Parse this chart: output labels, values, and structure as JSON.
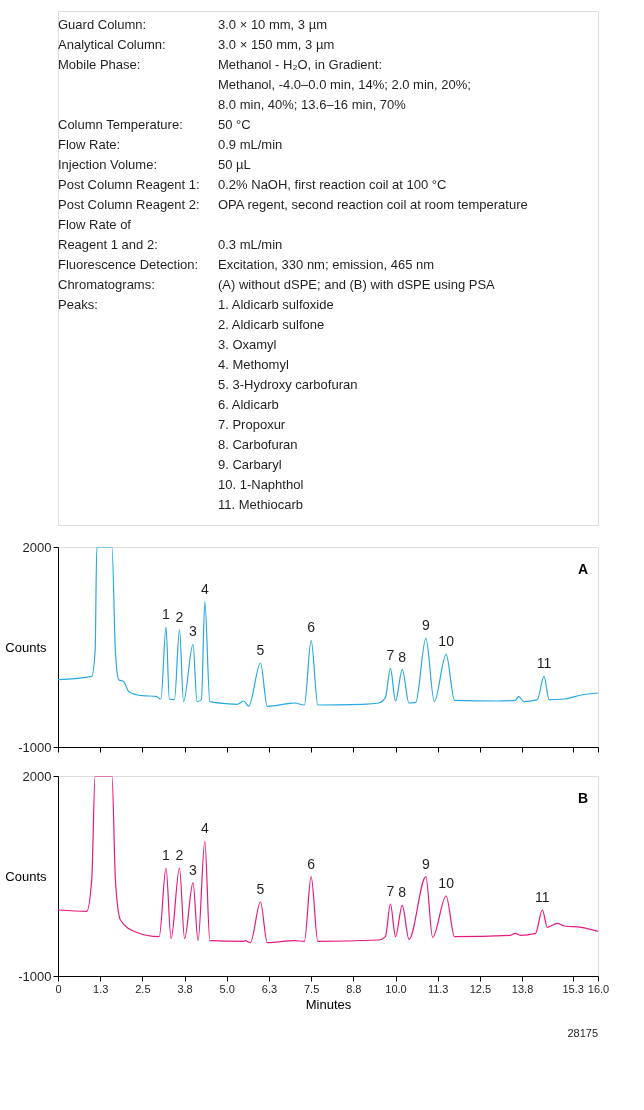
{
  "chart_data": [
    {
      "type": "other",
      "annotations": [
        "Guard Column:\t3.0 × 10 mm, 3 µm",
        "Analytical Column:\t3.0 × 150 mm, 3 µm",
        "Mobile Phase:\tMethanol - H₂O, in Gradient:",
        "\tMethanol, -4.0–0.0 min, 14%; 2.0 min, 20%;",
        "\t8.0 min, 40%; 13.6–16 min, 70%",
        "Column Temperature:\t50 °C",
        "Flow Rate:\t0.9 mL/min",
        "Injection Volume:\t50 µL",
        "Post Column Reagent 1:\t0.2% NaOH, first reaction coil at 100 °C",
        "Post Column Reagent 2:\tOPA regent, second reaction coil at room temperature",
        "Flow Rate of",
        "Reagent 1 and 2:\t0.3 mL/min",
        "Fluorescence Detection:\tExcitation, 330 nm; emission, 465 nm",
        "Chromatograms:\t(A) without dSPE; and (B) with dSPE using PSA",
        "Peaks:\t1.  Aldicarb sulfoxide",
        "\t2.  Aldicarb sulfone",
        "\t3.  Oxamyl",
        "\t4.  Methomyl",
        "\t5.  3-Hydroxy carbofuran",
        "\t6.  Aldicarb",
        "\t7.  Propoxur",
        "\t8.  Carbofuran",
        "\t9.  Carbaryl",
        "\t10.  1-Naphthol",
        "\t11.  Methiocarb"
      ]
    },
    {
      "type": "line",
      "title": "A",
      "ylabel": "Counts",
      "xlim": [
        0,
        16
      ],
      "ylim": [
        -1000,
        2000
      ],
      "yticks": [
        2000,
        -1000
      ],
      "tick_labels": "y",
      "xticks": [
        {
          "value": 0,
          "label": null
        },
        {
          "value": 1.25,
          "label": null
        },
        {
          "value": 2.5,
          "label": null
        },
        {
          "value": 3.75,
          "label": null
        },
        {
          "value": 5,
          "label": null
        },
        {
          "value": 6.25,
          "label": null
        },
        {
          "value": 7.5,
          "label": null
        },
        {
          "value": 8.75,
          "label": null
        },
        {
          "value": 10,
          "label": null
        },
        {
          "value": 11.25,
          "label": null
        },
        {
          "value": 12.5,
          "label": null
        },
        {
          "value": 13.75,
          "label": null
        },
        {
          "value": 15.25,
          "label": null
        },
        {
          "value": 16,
          "label": null
        }
      ],
      "series": [
        {
          "color": "#29a9e0",
          "x": [
            0,
            1.0,
            1.1,
            1.15,
            1.6,
            1.7,
            1.8,
            1.95,
            2.1,
            2.5,
            2.9,
            3.05,
            3.2,
            3.3,
            3.45,
            3.6,
            3.72,
            4.0,
            4.12,
            4.25,
            4.35,
            4.5,
            5.0,
            5.3,
            5.5,
            5.65,
            6.0,
            6.2,
            6.8,
            7.0,
            7.3,
            7.5,
            7.7,
            9.0,
            9.5,
            9.7,
            9.85,
            10.0,
            10.2,
            10.4,
            10.6,
            10.9,
            11.15,
            11.5,
            11.75,
            13.0,
            13.55,
            13.65,
            13.8,
            14.2,
            14.4,
            14.55,
            15.0,
            15.5,
            16.0
          ],
          "values": [
            10,
            60,
            440,
            2000,
            2000,
            440,
            10,
            -20,
            -170,
            -230,
            -240,
            -280,
            800,
            -280,
            -290,
            760,
            -320,
            540,
            -320,
            -290,
            1180,
            -320,
            -350,
            -360,
            -310,
            -390,
            260,
            -390,
            -350,
            -340,
            -370,
            600,
            -370,
            -360,
            -340,
            -260,
            180,
            -310,
            160,
            -340,
            -330,
            630,
            -320,
            390,
            -300,
            -310,
            -300,
            -240,
            -320,
            -290,
            60,
            -290,
            -280,
            -220,
            -190
          ]
        }
      ],
      "annotations": [
        {
          "text": "1",
          "x": 3.2,
          "y": 800
        },
        {
          "text": "2",
          "x": 3.6,
          "y": 760
        },
        {
          "text": "3",
          "x": 4.0,
          "y": 540
        },
        {
          "text": "4",
          "x": 4.35,
          "y": 1180
        },
        {
          "text": "5",
          "x": 6.0,
          "y": 260
        },
        {
          "text": "6",
          "x": 7.5,
          "y": 600
        },
        {
          "text": "7",
          "x": 9.85,
          "y": 180
        },
        {
          "text": "8",
          "x": 10.2,
          "y": 160
        },
        {
          "text": "9",
          "x": 10.9,
          "y": 630
        },
        {
          "text": "10",
          "x": 11.5,
          "y": 390
        },
        {
          "text": "11",
          "x": 14.4,
          "y": 60
        }
      ]
    },
    {
      "type": "line",
      "title": "B",
      "ylabel": "Counts",
      "xlabel": "Minutes",
      "xlim": [
        0,
        16
      ],
      "ylim": [
        -1000,
        2000
      ],
      "yticks": [
        2000,
        -1000
      ],
      "xticks": [
        0,
        {
          "value": 1.25,
          "label": "1.3"
        },
        2.5,
        {
          "value": 3.75,
          "label": "3.8"
        },
        {
          "value": 5,
          "label": "5.0"
        },
        {
          "value": 6.25,
          "label": "6.3"
        },
        7.5,
        {
          "value": 8.75,
          "label": "8.8"
        },
        {
          "value": 10,
          "label": "10.0"
        },
        {
          "value": 11.25,
          "label": "11.3"
        },
        12.5,
        {
          "value": 13.75,
          "label": "13.8"
        },
        {
          "value": 15.25,
          "label": "15.3"
        },
        {
          "value": 16,
          "label": "16.0"
        }
      ],
      "series": [
        {
          "color": "#e6197d",
          "x": [
            0,
            0.85,
            1.0,
            1.1,
            1.6,
            1.7,
            1.85,
            2.3,
            3.0,
            3.2,
            3.35,
            3.6,
            3.75,
            4.0,
            4.15,
            4.35,
            4.5,
            5.5,
            5.55,
            5.7,
            6.0,
            6.2,
            7.0,
            7.3,
            7.5,
            7.7,
            9.5,
            9.7,
            9.85,
            10.0,
            10.2,
            10.4,
            10.9,
            11.1,
            11.5,
            11.75,
            13.4,
            13.55,
            13.7,
            14.15,
            14.35,
            14.5,
            14.8,
            15.0,
            15.5,
            16.0
          ],
          "values": [
            -10,
            -30,
            450,
            2000,
            2000,
            450,
            -160,
            -340,
            -410,
            620,
            -440,
            620,
            -440,
            400,
            -470,
            1020,
            -470,
            -480,
            -470,
            -500,
            110,
            -500,
            -470,
            -480,
            490,
            -480,
            -460,
            -410,
            80,
            -410,
            60,
            -450,
            490,
            -420,
            200,
            -410,
            -390,
            -360,
            -390,
            -360,
            -10,
            -270,
            -210,
            -250,
            -270,
            -330
          ]
        }
      ],
      "annotations": [
        {
          "text": "1",
          "x": 3.2,
          "y": 620
        },
        {
          "text": "2",
          "x": 3.6,
          "y": 620
        },
        {
          "text": "3",
          "x": 4.0,
          "y": 400
        },
        {
          "text": "4",
          "x": 4.35,
          "y": 1020
        },
        {
          "text": "5",
          "x": 6.0,
          "y": 110
        },
        {
          "text": "6",
          "x": 7.5,
          "y": 490
        },
        {
          "text": "7",
          "x": 9.85,
          "y": 80
        },
        {
          "text": "8",
          "x": 10.2,
          "y": 60
        },
        {
          "text": "9",
          "x": 10.9,
          "y": 490
        },
        {
          "text": "10",
          "x": 11.5,
          "y": 200
        },
        {
          "text": "11",
          "x": 14.35,
          "y": -10
        },
        "28175"
      ]
    }
  ]
}
